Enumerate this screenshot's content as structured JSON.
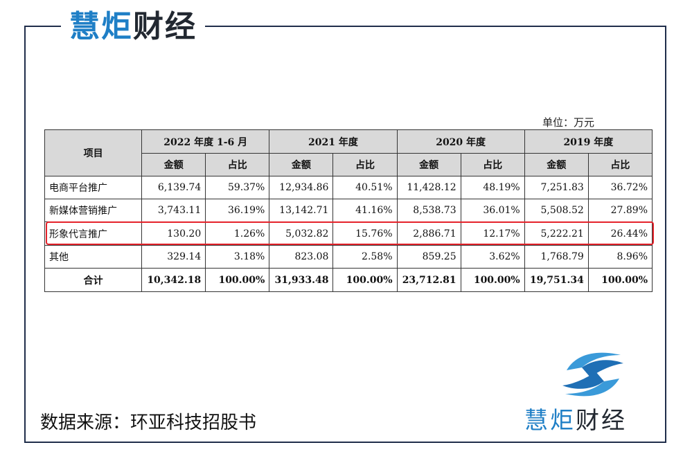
{
  "brand": {
    "name_part1": "慧炬",
    "name_part2": "财经"
  },
  "table": {
    "unit": "单位：万元",
    "header": {
      "item": "项目",
      "periods": [
        "2022 年度 1-6 月",
        "2021 年度",
        "2020 年度",
        "2019 年度"
      ],
      "amount": "金额",
      "ratio": "占比"
    },
    "rows": [
      {
        "name": "电商平台推广",
        "cells": [
          "6,139.74",
          "59.37%",
          "12,934.86",
          "40.51%",
          "11,428.12",
          "48.19%",
          "7,251.83",
          "36.72%"
        ]
      },
      {
        "name": "新媒体营销推广",
        "cells": [
          "3,743.11",
          "36.19%",
          "13,142.71",
          "41.16%",
          "8,538.73",
          "36.01%",
          "5,508.52",
          "27.89%"
        ]
      },
      {
        "name": "形象代言推广",
        "cells": [
          "130.20",
          "1.26%",
          "5,032.82",
          "15.76%",
          "2,886.71",
          "12.17%",
          "5,222.21",
          "26.44%"
        ]
      },
      {
        "name": "其他",
        "cells": [
          "329.14",
          "3.18%",
          "823.08",
          "2.58%",
          "859.25",
          "3.62%",
          "1,768.79",
          "8.96%"
        ]
      },
      {
        "name": "合计",
        "cells": [
          "10,342.18",
          "100.00%",
          "31,933.48",
          "100.00%",
          "23,712.81",
          "100.00%",
          "19,751.34",
          "100.00%"
        ]
      }
    ]
  },
  "source": "数据来源：环亚科技招股书",
  "colors": {
    "brand_blue": "#1f7fc6",
    "brand_dark": "#222831",
    "highlight_red": "#e5222a",
    "header_gray": "#d9d9d9"
  }
}
